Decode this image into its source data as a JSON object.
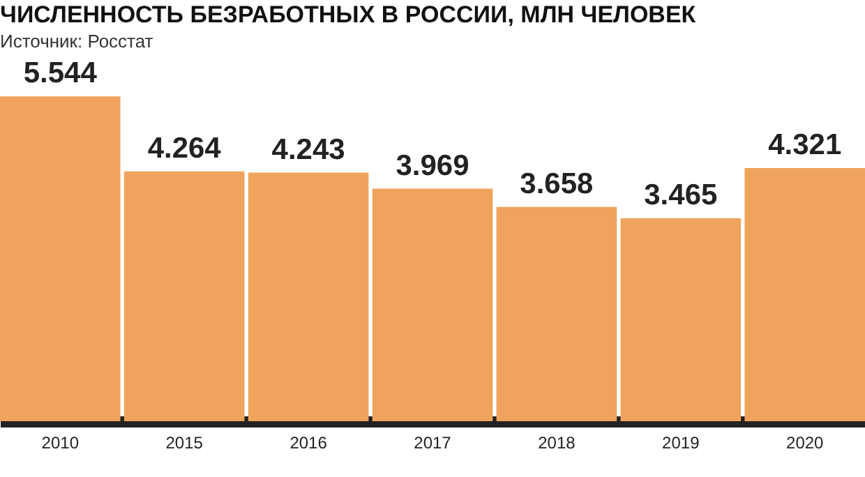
{
  "chart_data": {
    "type": "bar",
    "title": "ЧИСЛЕННОСТЬ БЕЗРАБОТНЫХ В РОССИИ, МЛН ЧЕЛОВЕК",
    "subtitle": "Источник: Росстат",
    "categories": [
      "2010",
      "2015",
      "2016",
      "2017",
      "2018",
      "2019",
      "2020"
    ],
    "values": [
      5.544,
      4.264,
      4.243,
      3.969,
      3.658,
      3.465,
      4.321
    ],
    "color": "#efa35c",
    "data_labels": true,
    "tick_labels": "x"
  }
}
